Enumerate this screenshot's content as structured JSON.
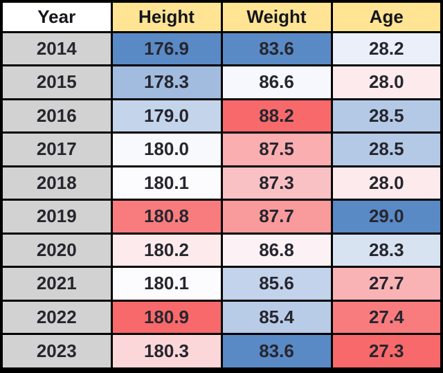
{
  "table": {
    "columns": [
      "Year",
      "Height",
      "Weight",
      "Age"
    ],
    "rows": [
      {
        "year": "2014",
        "height": "176.9",
        "weight": "83.6",
        "age": "28.2",
        "height_color": "#5A8AC6",
        "weight_color": "#5A8AC6",
        "age_color": "#EAEFF9"
      },
      {
        "year": "2015",
        "height": "178.3",
        "weight": "86.6",
        "age": "28.0",
        "height_color": "#A1BCDF",
        "weight_color": "#F7F8FD",
        "age_color": "#FCEAEC"
      },
      {
        "year": "2016",
        "height": "179.0",
        "weight": "88.2",
        "age": "28.5",
        "height_color": "#C4D5EB",
        "weight_color": "#F8696B",
        "age_color": "#B4C9E6"
      },
      {
        "year": "2017",
        "height": "180.0",
        "weight": "87.5",
        "age": "28.5",
        "height_color": "#F7F9FD",
        "weight_color": "#FAAEB0",
        "age_color": "#B4C9E6"
      },
      {
        "year": "2018",
        "height": "180.1",
        "weight": "87.3",
        "age": "28.0",
        "height_color": "#FCFCFF",
        "weight_color": "#FAC1C4",
        "age_color": "#FCEAEC"
      },
      {
        "year": "2019",
        "height": "180.8",
        "weight": "87.7",
        "age": "29.0",
        "height_color": "#F87C7E",
        "weight_color": "#F99A9C",
        "age_color": "#5A8AC6"
      },
      {
        "year": "2020",
        "height": "180.2",
        "weight": "86.8",
        "age": "28.3",
        "height_color": "#FCEAEC",
        "weight_color": "#FCF2F5",
        "age_color": "#D8E3F2"
      },
      {
        "year": "2021",
        "height": "180.1",
        "weight": "85.6",
        "age": "27.7",
        "height_color": "#FCFCFF",
        "weight_color": "#C2D3EB",
        "age_color": "#FAB3B5"
      },
      {
        "year": "2022",
        "height": "180.9",
        "weight": "85.4",
        "age": "27.4",
        "height_color": "#F8696B",
        "weight_color": "#B8CCE7",
        "age_color": "#F87C7E"
      },
      {
        "year": "2023",
        "height": "180.3",
        "weight": "83.6",
        "age": "27.3",
        "height_color": "#FBD7DA",
        "weight_color": "#5A8AC6",
        "age_color": "#F8696B"
      }
    ],
    "colors": {
      "header_year_bg": "#FFFFFF",
      "header_bg": "#FFE493",
      "year_cell_bg": "#D2D2D2",
      "border": "#000000",
      "text": "#26262E",
      "scale_blue": "#5A8AC6",
      "scale_white": "#FCFCFF",
      "scale_red": "#F8696B"
    }
  },
  "chart_data": {
    "type": "table",
    "columns": [
      "Year",
      "Height",
      "Weight",
      "Age"
    ],
    "x": [
      2014,
      2015,
      2016,
      2017,
      2018,
      2019,
      2020,
      2021,
      2022,
      2023
    ],
    "series": [
      {
        "name": "Height",
        "values": [
          176.9,
          178.3,
          179.0,
          180.0,
          180.1,
          180.8,
          180.2,
          180.1,
          180.9,
          180.3
        ]
      },
      {
        "name": "Weight",
        "values": [
          83.6,
          86.6,
          88.2,
          87.5,
          87.3,
          87.7,
          86.8,
          85.6,
          85.4,
          83.6
        ]
      },
      {
        "name": "Age",
        "values": [
          28.2,
          28.0,
          28.5,
          28.5,
          28.0,
          29.0,
          28.3,
          27.7,
          27.4,
          27.3
        ]
      }
    ],
    "heatmap_rule": "Per-column 3-color scale; Height and Weight: min=#5A8AC6 (blue), mid=#FCFCFF (white), max=#F8696B (red); Age reversed: min=#F8696B (red), max=#5A8AC6 (blue)"
  }
}
